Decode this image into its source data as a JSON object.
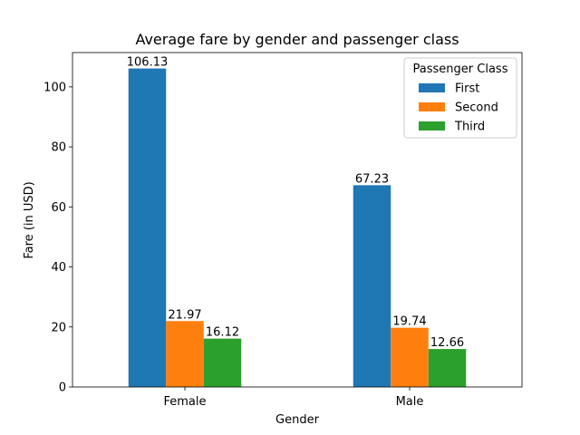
{
  "chart_data": {
    "type": "bar",
    "title": "Average fare by gender and passenger class",
    "xlabel": "Gender",
    "ylabel": "Fare (in USD)",
    "categories": [
      "Female",
      "Male"
    ],
    "series": [
      {
        "name": "First",
        "values": [
          106.13,
          67.23
        ],
        "labels": [
          "106.13",
          "67.23"
        ],
        "color": "#1f77b4"
      },
      {
        "name": "Second",
        "values": [
          21.97,
          19.74
        ],
        "labels": [
          "21.97",
          "19.74"
        ],
        "color": "#ff7f0e"
      },
      {
        "name": "Third",
        "values": [
          16.12,
          12.66
        ],
        "labels": [
          "16.12",
          "12.66"
        ],
        "color": "#2ca02c"
      }
    ],
    "ylim": [
      0,
      111.44
    ],
    "yticks": [
      0,
      20,
      40,
      60,
      80,
      100
    ],
    "ytick_labels": [
      "0",
      "20",
      "40",
      "60",
      "80",
      "100"
    ],
    "legend": {
      "title": "Passenger Class",
      "placement": "top-right"
    },
    "grid": false
  }
}
